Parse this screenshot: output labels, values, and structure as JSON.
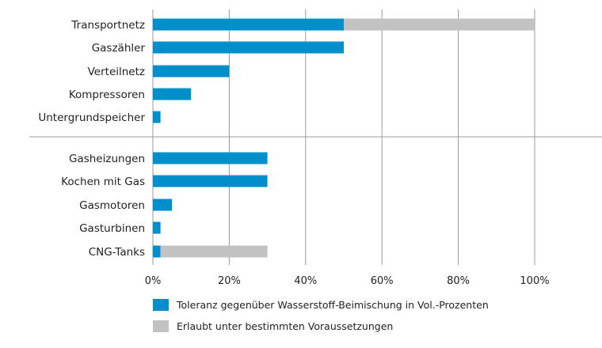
{
  "chart_data": {
    "type": "bar",
    "orientation": "horizontal",
    "stacked": true,
    "groups": [
      [
        "Transportnetz",
        "Gaszähler",
        "Verteilnetz",
        "Kompressoren",
        "Untergrundspeicher"
      ],
      [
        "Gasheizungen",
        "Kochen mit Gas",
        "Gasmotoren",
        "Gasturbinen",
        "CNG-Tanks"
      ]
    ],
    "categories": [
      "Transportnetz",
      "Gaszähler",
      "Verteilnetz",
      "Kompressoren",
      "Untergrundspeicher",
      "Gasheizungen",
      "Kochen mit Gas",
      "Gasmotoren",
      "Gasturbinen",
      "CNG-Tanks"
    ],
    "series": [
      {
        "name": "Toleranz gegenüber Wasserstoff-Beimischung in Vol.-Prozenten",
        "color": "#008fca",
        "values": [
          50,
          50,
          20,
          10,
          2,
          30,
          30,
          5,
          2,
          2
        ]
      },
      {
        "name": "Erlaubt unter bestimmten Voraussetzungen",
        "color": "#c2c2c2",
        "values": [
          50,
          0,
          0,
          0,
          0,
          0,
          0,
          0,
          0,
          28
        ]
      }
    ],
    "xlim": [
      0,
      100
    ],
    "xticks": [
      "0%",
      "20%",
      "40%",
      "60%",
      "80%",
      "100%"
    ],
    "grid": true,
    "legend": "bottom"
  }
}
